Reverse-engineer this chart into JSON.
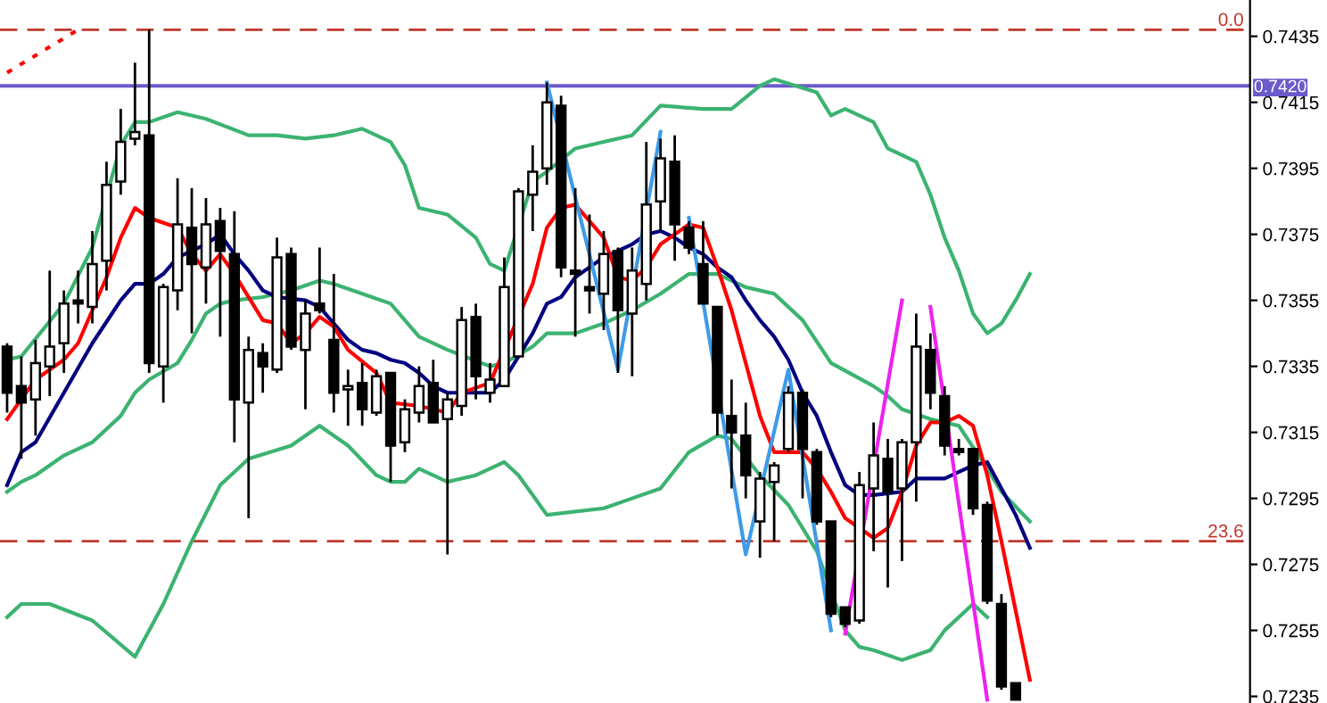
{
  "chart_data": {
    "type": "candlestick",
    "categories": [
      null,
      null,
      null,
      null,
      null,
      null,
      null,
      null,
      null,
      null,
      null,
      null,
      null,
      null,
      null,
      null,
      null,
      null,
      null,
      null,
      null,
      null,
      null,
      null,
      null,
      null,
      null,
      null,
      null,
      null,
      null,
      null,
      null,
      null,
      null,
      null,
      null,
      null,
      null,
      null,
      null,
      null,
      null,
      null,
      null,
      null,
      null,
      null,
      null,
      null,
      null,
      null,
      null,
      null,
      null,
      null,
      null,
      null,
      null,
      null,
      null,
      null,
      null,
      null,
      null,
      null,
      null,
      null,
      null,
      null,
      null,
      null,
      null,
      null,
      null,
      null,
      null,
      null,
      null,
      null,
      null,
      null,
      null,
      null,
      null,
      null,
      null,
      null
    ],
    "ohlc": [
      [
        0.7341,
        0.7342,
        0.7321,
        0.7327
      ],
      [
        0.7329,
        0.7338,
        0.7307,
        0.7324
      ],
      [
        0.7325,
        0.7343,
        0.7314,
        0.7336
      ],
      [
        0.7335,
        0.7364,
        0.7326,
        0.7341
      ],
      [
        0.7342,
        0.7358,
        0.7333,
        0.7354
      ],
      [
        0.7355,
        0.7364,
        0.7348,
        0.7354
      ],
      [
        0.7353,
        0.7376,
        0.7348,
        0.7366
      ],
      [
        0.7367,
        0.7397,
        0.7358,
        0.739
      ],
      [
        0.7391,
        0.7413,
        0.7387,
        0.7403
      ],
      [
        0.7404,
        0.7427,
        0.7402,
        0.7406
      ],
      [
        0.7405,
        0.7437,
        0.7333,
        0.7336
      ],
      [
        0.7335,
        0.736,
        0.7324,
        0.7359
      ],
      [
        0.7358,
        0.7392,
        0.7352,
        0.7378
      ],
      [
        0.7377,
        0.7389,
        0.7345,
        0.7366
      ],
      [
        0.7365,
        0.7386,
        0.7354,
        0.7378
      ],
      [
        0.7379,
        0.7383,
        0.7344,
        0.737
      ],
      [
        0.7369,
        0.7382,
        0.7312,
        0.7325
      ],
      [
        0.7324,
        0.7344,
        0.7289,
        0.734
      ],
      [
        0.7339,
        0.7342,
        0.7327,
        0.7335
      ],
      [
        0.7334,
        0.7374,
        0.7333,
        0.7368
      ],
      [
        0.7369,
        0.7371,
        0.734,
        0.7341
      ],
      [
        0.734,
        0.7355,
        0.7322,
        0.7351
      ],
      [
        0.7354,
        0.7371,
        0.7351,
        0.7352
      ],
      [
        0.7343,
        0.7363,
        0.7321,
        0.7327
      ],
      [
        0.7328,
        0.7334,
        0.7317,
        0.7329
      ],
      [
        0.733,
        0.7336,
        0.7317,
        0.7322
      ],
      [
        0.7321,
        0.7334,
        0.732,
        0.7332
      ],
      [
        0.7333,
        0.7333,
        0.73,
        0.7311
      ],
      [
        0.7312,
        0.7325,
        0.7309,
        0.7322
      ],
      [
        0.7321,
        0.7335,
        0.7318,
        0.7329
      ],
      [
        0.733,
        0.7337,
        0.7318,
        0.7318
      ],
      [
        0.7319,
        0.7327,
        0.7278,
        0.7325
      ],
      [
        0.7323,
        0.7353,
        0.732,
        0.7349
      ],
      [
        0.735,
        0.7354,
        0.7325,
        0.7332
      ],
      [
        0.7327,
        0.7336,
        0.7324,
        0.7331
      ],
      [
        0.7329,
        0.7368,
        0.7329,
        0.7359
      ],
      [
        0.7338,
        0.7389,
        0.7338,
        0.7388
      ],
      [
        0.7387,
        0.7402,
        0.7376,
        0.7394
      ],
      [
        0.7395,
        0.7421,
        0.739,
        0.7415
      ],
      [
        0.7414,
        0.7417,
        0.7362,
        0.7365
      ],
      [
        0.7364,
        0.7389,
        0.7344,
        0.7363
      ],
      [
        0.7359,
        0.7381,
        0.7351,
        0.7358
      ],
      [
        0.7357,
        0.7376,
        0.7346,
        0.7369
      ],
      [
        0.737,
        0.7371,
        0.7333,
        0.7352
      ],
      [
        0.7351,
        0.7371,
        0.7332,
        0.7364
      ],
      [
        0.736,
        0.7403,
        0.7355,
        0.7384
      ],
      [
        0.7385,
        0.7404,
        0.7376,
        0.7398
      ],
      [
        0.7397,
        0.7405,
        0.7367,
        0.7378
      ],
      [
        0.7377,
        0.7379,
        0.7369,
        0.7371
      ],
      [
        0.7366,
        0.7379,
        0.7354,
        0.7354
      ],
      [
        0.7353,
        0.7353,
        0.7314,
        0.7321
      ],
      [
        0.732,
        0.7331,
        0.7298,
        0.7315
      ],
      [
        0.7314,
        0.7324,
        0.7295,
        0.7302
      ],
      [
        0.7288,
        0.7303,
        0.7277,
        0.7301
      ],
      [
        0.73,
        0.7306,
        0.7282,
        0.7305
      ],
      [
        0.731,
        0.7329,
        0.7309,
        0.7327
      ],
      [
        0.7327,
        0.7328,
        0.7295,
        0.731
      ],
      [
        0.7309,
        0.731,
        0.7287,
        0.7288
      ],
      [
        0.7288,
        0.7288,
        0.7259,
        0.726
      ],
      [
        0.7262,
        0.7262,
        0.7256,
        0.7257
      ],
      [
        0.7258,
        0.7303,
        0.7257,
        0.7299
      ],
      [
        0.7298,
        0.7318,
        0.7279,
        0.7308
      ],
      [
        0.7307,
        0.7313,
        0.7268,
        0.7297
      ],
      [
        0.7298,
        0.7313,
        0.7276,
        0.7312
      ],
      [
        0.7312,
        0.7351,
        0.7294,
        0.7341
      ],
      [
        0.734,
        0.7345,
        0.7322,
        0.7327
      ],
      [
        0.7326,
        0.7329,
        0.7308,
        0.7311
      ],
      [
        0.731,
        0.7313,
        0.7308,
        0.7309
      ],
      [
        0.731,
        0.731,
        0.729,
        0.7292
      ],
      [
        0.7293,
        0.7294,
        0.7263,
        0.7264
      ],
      [
        0.7263,
        0.7266,
        0.7237,
        0.7238
      ],
      [
        0.7239,
        0.7239,
        0.7234,
        0.7234
      ],
      null,
      null,
      null,
      null,
      null,
      null,
      null,
      null,
      null,
      null,
      null,
      null,
      null,
      null,
      null,
      null
    ],
    "series": [
      {
        "type": "line",
        "color": "#3cb371",
        "values": [
          0.7337,
          0.7338,
          null,
          null,
          0.7354,
          null,
          0.7371,
          null,
          0.7402,
          0.7409,
          0.7409,
          null,
          0.7412,
          null,
          0.741,
          null,
          null,
          0.7405,
          null,
          0.7405,
          null,
          0.7404,
          null,
          0.7405,
          null,
          0.7407,
          null,
          0.7403,
          0.7396,
          0.7383,
          null,
          0.7381,
          null,
          0.7374,
          0.7366,
          0.7364,
          null,
          0.7391,
          0.7394,
          null,
          0.7401,
          null,
          0.7403,
          null,
          0.7405,
          null,
          0.7414,
          null,
          null,
          0.7413,
          null,
          0.7413,
          null,
          0.742,
          0.7422,
          null,
          null,
          0.7418,
          0.7411,
          0.7413,
          null,
          0.7409,
          0.7401,
          null,
          0.7397,
          0.7387,
          0.7374,
          0.7364,
          0.7351,
          0.7345,
          0.7348,
          0.7355,
          0.7363,
          null,
          null,
          null,
          null,
          null,
          null,
          null,
          null,
          null,
          null,
          null,
          null,
          null,
          null,
          null
        ]
      },
      {
        "type": "line",
        "color": "#3cb371",
        "values": [
          0.7297,
          0.73,
          0.7302,
          null,
          0.7308,
          null,
          0.7312,
          null,
          0.732,
          0.7327,
          0.7331,
          null,
          0.7336,
          0.7343,
          0.7351,
          0.7354,
          0.7355,
          null,
          0.7356,
          null,
          0.7358,
          null,
          0.7361,
          0.736,
          null,
          0.7357,
          null,
          0.7354,
          null,
          0.7344,
          null,
          0.734,
          null,
          null,
          0.7335,
          0.7336,
          null,
          0.7341,
          0.7345,
          null,
          0.7345,
          null,
          0.7348,
          null,
          0.7352,
          null,
          0.7357,
          null,
          0.7363,
          null,
          0.7363,
          null,
          0.7359,
          null,
          0.7357,
          null,
          0.7349,
          null,
          0.7336,
          null,
          null,
          0.7329,
          0.7326,
          0.7322,
          null,
          0.7319,
          null,
          0.7317,
          null,
          0.7304,
          0.7297,
          null,
          0.7288,
          null,
          null,
          null,
          null,
          null,
          null,
          null,
          null,
          null,
          null,
          null,
          null,
          null,
          null,
          null
        ]
      },
      {
        "type": "line",
        "color": "#3cb371",
        "values": [
          0.7259,
          0.7263,
          null,
          0.7263,
          null,
          null,
          0.7258,
          null,
          null,
          0.7247,
          null,
          0.7263,
          null,
          0.7282,
          null,
          0.7299,
          null,
          0.7307,
          null,
          null,
          0.7311,
          null,
          0.7317,
          null,
          0.7311,
          null,
          0.7302,
          0.73,
          0.73,
          0.7304,
          null,
          0.73,
          null,
          0.7302,
          null,
          0.7306,
          0.7302,
          null,
          0.729,
          null,
          null,
          null,
          0.7292,
          null,
          0.7295,
          null,
          0.7298,
          null,
          0.7309,
          null,
          0.7314,
          0.7313,
          null,
          0.7302,
          null,
          0.7293,
          null,
          0.7279,
          null,
          0.7255,
          0.725,
          0.7249,
          null,
          0.7246,
          null,
          0.7249,
          0.7255,
          null,
          0.7263,
          0.7259,
          null,
          null,
          null,
          null,
          null,
          null,
          null,
          null,
          null,
          null,
          null,
          null,
          null,
          null,
          null,
          null,
          null,
          null
        ]
      },
      {
        "type": "line",
        "color": "#000080",
        "values": [
          0.7299,
          0.7309,
          0.7312,
          null,
          0.7327,
          null,
          0.7342,
          null,
          0.7355,
          0.736,
          0.736,
          0.7363,
          0.7368,
          0.737,
          0.7372,
          0.7375,
          0.7369,
          0.7364,
          0.7358,
          0.7356,
          null,
          0.7355,
          0.7353,
          0.7348,
          0.7343,
          0.734,
          0.7339,
          0.7337,
          0.7336,
          0.7333,
          0.7329,
          0.7327,
          null,
          null,
          0.7327,
          0.7331,
          0.7338,
          0.7345,
          0.7354,
          0.7356,
          0.7362,
          0.7365,
          0.7368,
          0.737,
          0.7372,
          0.7375,
          0.7376,
          0.7374,
          0.7371,
          0.7369,
          0.7365,
          0.7362,
          0.7355,
          0.7349,
          0.7344,
          0.7337,
          0.7327,
          0.732,
          0.7309,
          0.7299,
          0.7296,
          0.7296,
          null,
          0.7297,
          0.7301,
          null,
          0.7301,
          null,
          0.7305,
          0.7306,
          0.7298,
          0.729,
          0.728,
          null,
          null,
          null,
          null,
          null,
          null,
          null,
          null,
          null,
          null,
          null,
          null,
          null,
          null,
          null
        ]
      },
      {
        "type": "line",
        "color": "#ff0000",
        "values": [
          0.7319,
          0.7325,
          0.7331,
          null,
          0.7337,
          0.7342,
          0.7352,
          0.7362,
          0.7374,
          0.7383,
          0.738,
          null,
          0.7377,
          0.7369,
          0.7364,
          0.7369,
          0.7363,
          null,
          0.7349,
          0.7348,
          0.7342,
          0.7345,
          0.735,
          0.7347,
          0.734,
          null,
          0.7333,
          0.7324,
          null,
          0.7323,
          null,
          0.7321,
          0.7327,
          null,
          0.733,
          null,
          null,
          0.736,
          0.7377,
          0.7383,
          0.7384,
          null,
          0.7374,
          0.7362,
          0.7361,
          0.7365,
          0.7372,
          null,
          0.7378,
          0.7377,
          0.7365,
          0.7352,
          0.7336,
          0.732,
          0.7309,
          0.7309,
          0.7309,
          0.7304,
          0.7297,
          0.7289,
          null,
          0.7283,
          0.7286,
          0.7297,
          0.7311,
          0.7318,
          0.7318,
          0.732,
          0.7317,
          0.7302,
          0.7282,
          0.7261,
          0.724,
          null,
          null,
          null,
          null,
          null,
          null,
          null,
          null,
          null,
          null,
          null,
          null,
          null,
          null,
          null
        ]
      },
      {
        "type": "line",
        "color": "#ff0000",
        "line_style": "dotted",
        "values": [
          0.7424,
          null,
          null,
          null,
          null,
          0.7437,
          null,
          null,
          null,
          null,
          null,
          null,
          null,
          null,
          null,
          null,
          null,
          null,
          null,
          null,
          null,
          null,
          null,
          null,
          null,
          null,
          null,
          null,
          null,
          null,
          null,
          null,
          null,
          null,
          null,
          null,
          null,
          null,
          null,
          null,
          null,
          null,
          null,
          null,
          null,
          null,
          null,
          null,
          null,
          null,
          null,
          null,
          null,
          null,
          null,
          null,
          null,
          null,
          null,
          null,
          null,
          null,
          null,
          null,
          null,
          null,
          null,
          null,
          null,
          null,
          null,
          null,
          null,
          null,
          null,
          null,
          null,
          null,
          null,
          null,
          null,
          null,
          null,
          null,
          null,
          null,
          null,
          null
        ]
      },
      {
        "type": "line",
        "color": "#3d9be9",
        "values": [
          null,
          null,
          null,
          null,
          null,
          null,
          null,
          null,
          null,
          null,
          null,
          null,
          null,
          null,
          null,
          null,
          null,
          null,
          null,
          null,
          null,
          null,
          null,
          null,
          null,
          null,
          null,
          null,
          null,
          null,
          null,
          null,
          null,
          null,
          null,
          null,
          null,
          null,
          0.7421,
          null,
          null,
          null,
          null,
          0.7334,
          null,
          null,
          0.7406,
          null,
          null,
          null,
          null,
          null,
          null,
          null,
          null,
          null,
          null,
          null,
          null,
          null,
          null,
          null,
          null,
          null,
          null,
          null,
          null,
          null,
          null,
          null,
          null,
          null,
          null,
          null,
          null,
          null,
          null,
          null,
          null,
          null,
          null,
          null,
          null,
          null,
          null,
          null,
          null,
          null
        ]
      },
      {
        "type": "line",
        "color": "#3d9be9",
        "values": [
          null,
          null,
          null,
          null,
          null,
          null,
          null,
          null,
          null,
          null,
          null,
          null,
          null,
          null,
          null,
          null,
          null,
          null,
          null,
          null,
          null,
          null,
          null,
          null,
          null,
          null,
          null,
          null,
          null,
          null,
          null,
          null,
          null,
          null,
          null,
          null,
          null,
          null,
          null,
          null,
          null,
          null,
          null,
          null,
          null,
          null,
          null,
          null,
          0.738,
          null,
          null,
          null,
          0.7278,
          null,
          null,
          0.7334,
          null,
          null,
          0.7255,
          null,
          null,
          null,
          null,
          null,
          null,
          null,
          null,
          null,
          null,
          null,
          null,
          null,
          null,
          null,
          null,
          null,
          null,
          null,
          null,
          null,
          null,
          null,
          null,
          null,
          null,
          null,
          null,
          null
        ]
      },
      {
        "type": "line",
        "color": "#ee22ee",
        "values": [
          null,
          null,
          null,
          null,
          null,
          null,
          null,
          null,
          null,
          null,
          null,
          null,
          null,
          null,
          null,
          null,
          null,
          null,
          null,
          null,
          null,
          null,
          null,
          null,
          null,
          null,
          null,
          null,
          null,
          null,
          null,
          null,
          null,
          null,
          null,
          null,
          null,
          null,
          null,
          null,
          null,
          null,
          null,
          null,
          null,
          null,
          null,
          null,
          null,
          null,
          null,
          null,
          null,
          null,
          null,
          null,
          null,
          null,
          null,
          0.7254,
          null,
          null,
          null,
          0.7355,
          null,
          null,
          null,
          null,
          null,
          null,
          null,
          null,
          null,
          null,
          null,
          null,
          null,
          null,
          null,
          null,
          null,
          null,
          null,
          null,
          null,
          null,
          null,
          null
        ]
      },
      {
        "type": "line",
        "color": "#ee22ee",
        "values": [
          null,
          null,
          null,
          null,
          null,
          null,
          null,
          null,
          null,
          null,
          null,
          null,
          null,
          null,
          null,
          null,
          null,
          null,
          null,
          null,
          null,
          null,
          null,
          null,
          null,
          null,
          null,
          null,
          null,
          null,
          null,
          null,
          null,
          null,
          null,
          null,
          null,
          null,
          null,
          null,
          null,
          null,
          null,
          null,
          null,
          null,
          null,
          null,
          null,
          null,
          null,
          null,
          null,
          null,
          null,
          null,
          null,
          null,
          null,
          null,
          null,
          null,
          null,
          null,
          null,
          0.7353,
          null,
          null,
          null,
          0.7234,
          null,
          null,
          null,
          null,
          null,
          null,
          null,
          null,
          null,
          null,
          null,
          null,
          null,
          null,
          null,
          null,
          null,
          null
        ]
      }
    ],
    "ref_lines": [
      {
        "axis": "y",
        "value": 0.7437,
        "color": "#c0392b",
        "line_style": "dashed"
      },
      {
        "axis": "y",
        "value": 0.7282,
        "color": "#c0392b",
        "line_style": "dashed"
      },
      {
        "axis": "y",
        "value": 0.742,
        "label": "0.7420",
        "color": "#6a5acd",
        "line_style": "solid"
      }
    ],
    "annotations": [
      {
        "text": "0.0",
        "y": 0.7437
      },
      {
        "text": "23.6",
        "y": 0.7282
      }
    ],
    "ylim": [
      0.7233,
      0.7446
    ],
    "yticks": [
      0.7435,
      0.7415,
      0.7395,
      0.7375,
      0.7355,
      0.7335,
      0.7315,
      0.7295,
      0.7275,
      0.7255,
      0.7235
    ],
    "tick_labels": "y",
    "grid": false,
    "legend": false
  }
}
